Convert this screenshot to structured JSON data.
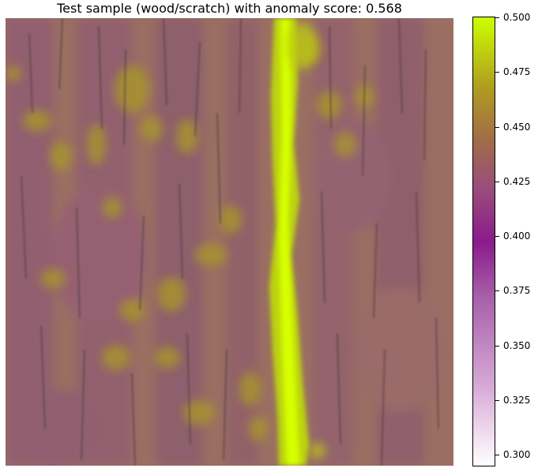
{
  "title": "Test sample (wood/scratch) with anomaly score: 0.568",
  "colorbar": {
    "min": 0.295,
    "max": 0.5,
    "ticks": [
      "0.500",
      "0.475",
      "0.450",
      "0.425",
      "0.400",
      "0.375",
      "0.350",
      "0.325",
      "0.300"
    ]
  },
  "colors": {
    "high": "#ccff00",
    "mid": "#8c1a8c",
    "low": "#ffffff",
    "wood": "#9c7260"
  }
}
